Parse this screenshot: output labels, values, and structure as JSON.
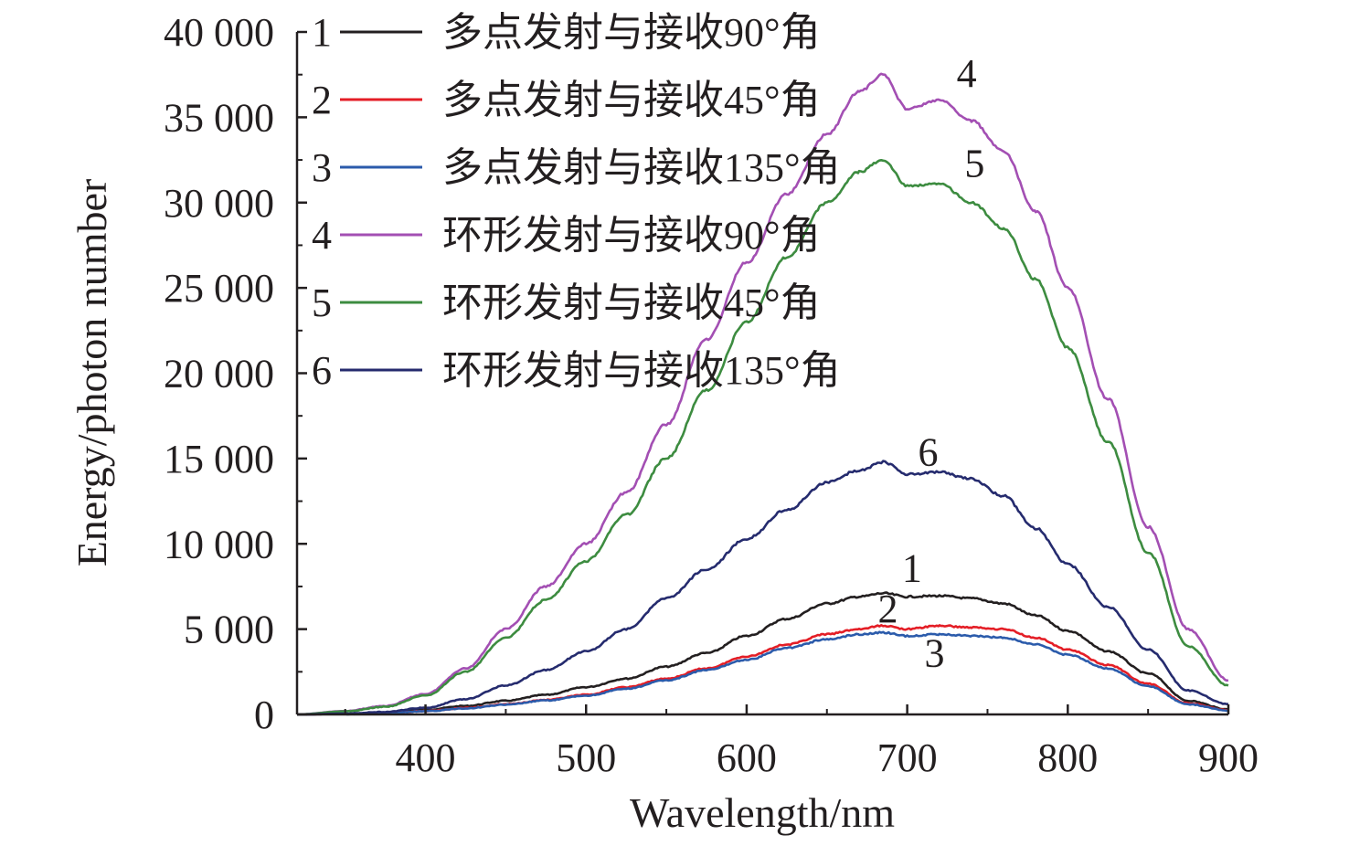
{
  "chart_data": {
    "type": "line",
    "title": "",
    "xlabel": "Wavelength/nm",
    "ylabel": "Energy/photon number",
    "xlim": [
      320,
      900
    ],
    "ylim": [
      0,
      40000
    ],
    "x_ticks": [
      400,
      500,
      600,
      700,
      800,
      900
    ],
    "x_tick_labels": [
      "400",
      "500",
      "600",
      "700",
      "800",
      "900"
    ],
    "y_ticks": [
      0,
      5000,
      10000,
      15000,
      20000,
      25000,
      30000,
      35000,
      40000
    ],
    "y_tick_labels": [
      "0",
      "5 000",
      "10 000",
      "15 000",
      "20 000",
      "25 000",
      "30 000",
      "35 000",
      "40 000"
    ],
    "legend_position": "top-left",
    "x": [
      320,
      350,
      375,
      400,
      425,
      450,
      475,
      500,
      525,
      550,
      575,
      600,
      625,
      650,
      670,
      685,
      700,
      720,
      740,
      760,
      780,
      800,
      825,
      850,
      875,
      900
    ],
    "series": [
      {
        "id": "1",
        "name": "多点发射与接收90°角",
        "color": "#231f20",
        "values": [
          0,
          40,
          100,
          280,
          500,
          800,
          1150,
          1600,
          2100,
          2800,
          3600,
          4600,
          5600,
          6500,
          6900,
          7100,
          6900,
          6950,
          6800,
          6500,
          5800,
          4900,
          3700,
          2400,
          800,
          300
        ]
      },
      {
        "id": "2",
        "name": "多点发射与接收45°角",
        "color": "#e41e26",
        "values": [
          0,
          25,
          70,
          200,
          380,
          600,
          850,
          1150,
          1600,
          2100,
          2700,
          3400,
          4100,
          4700,
          5000,
          5200,
          5000,
          5200,
          5100,
          5000,
          4500,
          3800,
          2900,
          1800,
          650,
          250
        ]
      },
      {
        "id": "3",
        "name": "多点发射与接收135°角",
        "color": "#2b5bab",
        "values": [
          0,
          25,
          65,
          190,
          360,
          570,
          820,
          1100,
          1500,
          2000,
          2600,
          3200,
          3900,
          4400,
          4700,
          4800,
          4600,
          4700,
          4600,
          4500,
          4100,
          3500,
          2700,
          1650,
          600,
          230
        ]
      },
      {
        "id": "4",
        "name": "环形发射与接收90°角",
        "color": "#a34fb3",
        "values": [
          0,
          200,
          500,
          1200,
          2700,
          5000,
          7500,
          10000,
          13000,
          17000,
          22000,
          26500,
          30500,
          34000,
          36500,
          37500,
          35500,
          36000,
          34800,
          33000,
          29500,
          25000,
          18500,
          11000,
          5000,
          2000
        ]
      },
      {
        "id": "5",
        "name": "环形发射与接收45°角",
        "color": "#3d8c40",
        "values": [
          0,
          180,
          450,
          1100,
          2500,
          4500,
          6700,
          9000,
          11700,
          15000,
          19000,
          23000,
          26800,
          30000,
          31800,
          32500,
          31000,
          31100,
          30000,
          28500,
          25500,
          21500,
          16000,
          9500,
          4000,
          1700
        ]
      },
      {
        "id": "6",
        "name": "环形发射与接收135°角",
        "color": "#252b6e",
        "values": [
          0,
          50,
          150,
          400,
          900,
          1700,
          2600,
          3700,
          5000,
          6800,
          8500,
          10300,
          12000,
          13600,
          14300,
          14800,
          14100,
          14200,
          13800,
          12800,
          10900,
          8800,
          6300,
          3800,
          1400,
          600
        ]
      }
    ],
    "legend_entries": [
      {
        "num": "1",
        "label": "多点发射与接收90°角"
      },
      {
        "num": "2",
        "label": "多点发射与接收45°角"
      },
      {
        "num": "3",
        "label": "多点发射与接收135°角"
      },
      {
        "num": "4",
        "label": "环形发射与接收90°角"
      },
      {
        "num": "5",
        "label": "环形发射与接收45°角"
      },
      {
        "num": "6",
        "label": "环形发射与接收135°角"
      }
    ],
    "curve_labels": [
      {
        "text": "4",
        "x": 737,
        "y": 36800
      },
      {
        "text": "5",
        "x": 742,
        "y": 31500
      },
      {
        "text": "6",
        "x": 713,
        "y": 14600
      },
      {
        "text": "1",
        "x": 703,
        "y": 7800
      },
      {
        "text": "2",
        "x": 688,
        "y": 5400
      },
      {
        "text": "3",
        "x": 717,
        "y": 2800
      }
    ]
  }
}
